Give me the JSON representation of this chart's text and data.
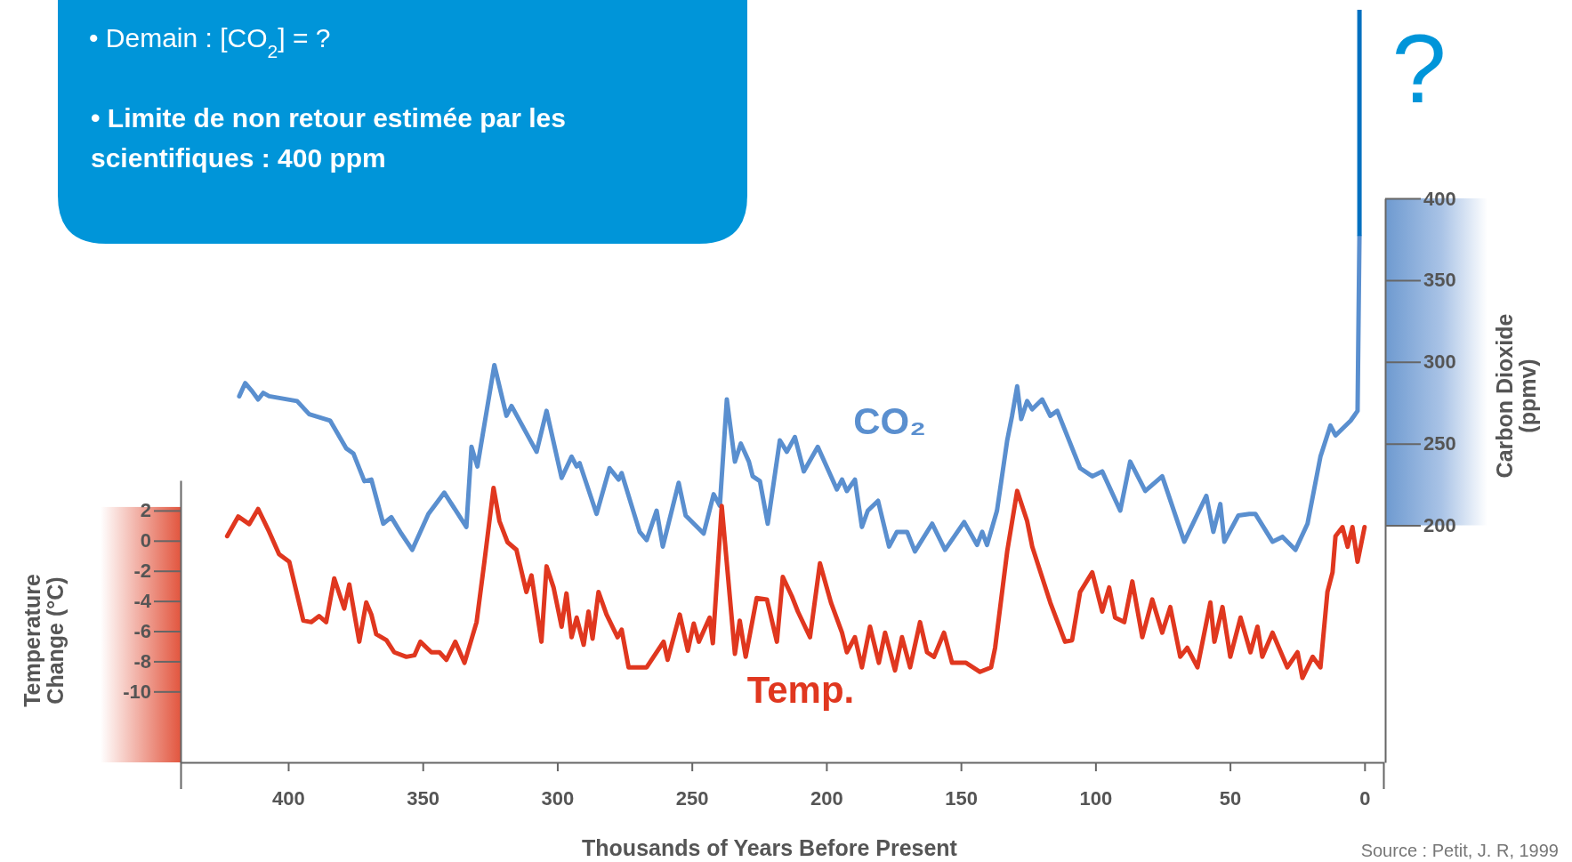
{
  "chart_data": {
    "type": "line",
    "xlabel": "Thousands of Years Before Present",
    "ylabel": "Temperature Change (°C)",
    "y2label": "Carbon Dioxide (ppmv)",
    "annotations": [
      "• Demain : [CO$_{2}$] = ?",
      "• Limite de non retour estimée par les scientifiques : 400 ppm",
      "?",
      "Source : Petit, J. R, 1999"
    ],
    "xlim": [
      440,
      -7
    ],
    "xticks": [
      400,
      350,
      300,
      250,
      200,
      150,
      100,
      50,
      0
    ],
    "ylim": [
      -14.7,
      4
    ],
    "yticks": [
      2,
      0,
      -2,
      -4,
      -6,
      -8,
      -10
    ],
    "y2lim": [
      55,
      400
    ],
    "y2ticks": [
      200,
      250,
      300,
      350,
      400
    ],
    "series": [
      {
        "name": "CO₂",
        "color": "#5a8fcf",
        "axis": "y2",
        "x": [
          418.2,
          416,
          413.4,
          411.2,
          409.3,
          407.1,
          396.7,
          392.2,
          384.4,
          378.4,
          375.8,
          371.7,
          369.1,
          364.7,
          361.7,
          358,
          353.9,
          347.9,
          342,
          333.8,
          331.9,
          329.7,
          323.4,
          318.9,
          317,
          307.7,
          304,
          298.4,
          294.7,
          292.8,
          291.7,
          285.4,
          280.6,
          277.2,
          276.1,
          269.4,
          266.8,
          263.1,
          260.8,
          254.9,
          252.3,
          245.6,
          241.9,
          239.6,
          237,
          234,
          231.8,
          228.8,
          227.4,
          224.7,
          221.8,
          217.3,
          214.7,
          211.7,
          208.4,
          203.2,
          196.1,
          194.2,
          192.4,
          189.4,
          186.8,
          184.6,
          180.8,
          176.7,
          173.8,
          170,
          167.1,
          160.7,
          155.9,
          148.8,
          144,
          142.1,
          140.3,
          136.6,
          132.8,
          131,
          129.1,
          127.6,
          125.4,
          123.5,
          119.8,
          116.8,
          114.2,
          105.7,
          101.2,
          97.5,
          90.8,
          87.1,
          81.5,
          75.2,
          67,
          58.8,
          56.2,
          53.6,
          52.1,
          46.9,
          42.8,
          40.6,
          34.2,
          30.5,
          25.7,
          21.2,
          16.4,
          12.7,
          10.8,
          5.2,
          2.6,
          1.9
        ],
        "values": [
          279,
          287,
          282,
          277,
          281,
          279,
          276,
          268,
          264,
          247,
          244,
          227,
          228,
          201,
          205,
          195,
          185,
          207,
          220,
          199,
          248,
          236,
          298,
          267,
          273,
          245,
          270,
          229,
          242,
          236,
          238,
          207,
          235,
          228,
          232,
          196,
          191,
          209,
          187,
          226,
          206,
          195,
          219,
          212,
          277,
          239,
          250,
          239,
          230,
          227,
          201,
          252,
          245,
          254,
          233,
          248,
          222,
          228,
          221,
          228,
          199,
          209,
          215,
          187,
          196,
          196,
          184,
          201,
          185,
          202,
          188,
          196,
          188,
          209,
          252,
          267,
          285,
          265,
          276,
          271,
          277,
          267,
          270,
          235,
          230,
          233,
          209,
          239,
          221,
          230,
          190,
          218,
          196,
          213,
          190,
          206,
          207,
          207,
          190,
          193,
          185,
          201,
          242,
          261,
          255,
          264,
          270,
          377
        ]
      },
      {
        "name": "Temp.",
        "color": "#e0371f",
        "x": [
          422.7,
          418.6,
          414.5,
          411.2,
          407.1,
          403.4,
          399.6,
          394.4,
          391.4,
          388.5,
          385.9,
          382.9,
          379.2,
          377.3,
          373.6,
          371,
          369.1,
          367.3,
          363.5,
          360.6,
          356.1,
          353.1,
          350.9,
          346.8,
          343.8,
          341.2,
          337.9,
          334.5,
          330,
          327.1,
          323.7,
          321.5,
          318.5,
          315.2,
          311.5,
          309.6,
          305.9,
          304,
          301.4,
          298.4,
          296.6,
          294.7,
          292.8,
          290.2,
          288.4,
          286.9,
          284.7,
          281.7,
          277.6,
          276.1,
          273.5,
          266.8,
          260.5,
          259,
          254.5,
          251.5,
          249.3,
          247.4,
          243.4,
          242.2,
          238.9,
          234,
          232.2,
          230,
          225.9,
          222.1,
          218.4,
          216.2,
          212.8,
          210.6,
          206.1,
          202.4,
          198.3,
          194.2,
          192.4,
          189.4,
          186.8,
          183.8,
          180.5,
          178.2,
          174.5,
          171.9,
          168.9,
          165.2,
          162.6,
          160,
          156.3,
          153.3,
          148.1,
          142.9,
          138.8,
          137.3,
          132.8,
          129.1,
          125.4,
          123.5,
          116.8,
          111.3,
          108.7,
          105.7,
          101.2,
          97.5,
          94.9,
          92.7,
          89.3,
          86.3,
          82.6,
          78.9,
          75.2,
          72.2,
          68.5,
          65.9,
          62.1,
          57.3,
          55.8,
          52.8,
          49.9,
          46.1,
          42.4,
          39.8,
          38,
          34.2,
          28.7,
          24.9,
          23.1,
          19.3,
          16.4,
          13.8,
          11.9,
          10.8,
          8.2,
          6.3,
          4.5,
          2.6,
          0
        ],
        "values": [
          0.3,
          1.6,
          1.1,
          2.1,
          0.6,
          -0.9,
          -1.4,
          -5.3,
          -5.4,
          -5,
          -5.4,
          -2.5,
          -4.5,
          -2.9,
          -6.7,
          -4.1,
          -4.9,
          -6.2,
          -6.6,
          -7.4,
          -7.7,
          -7.6,
          -6.7,
          -7.4,
          -7.4,
          -7.9,
          -6.7,
          -8.1,
          -5.4,
          -1.4,
          3.5,
          1.3,
          -0.1,
          -0.6,
          -3.4,
          -2.3,
          -6.7,
          -1.7,
          -3.1,
          -5.7,
          -3.5,
          -6.4,
          -5.1,
          -6.9,
          -4.7,
          -6.5,
          -3.4,
          -4.9,
          -6.4,
          -5.9,
          -8.4,
          -8.4,
          -6.7,
          -7.9,
          -4.9,
          -7.3,
          -5.5,
          -6.7,
          -5.1,
          -6.8,
          2.3,
          -7.5,
          -5.3,
          -7.7,
          -3.8,
          -3.9,
          -6.7,
          -2.4,
          -3.7,
          -4.7,
          -6.4,
          -1.5,
          -4.1,
          -6.1,
          -7.4,
          -6.4,
          -8.4,
          -5.7,
          -8.1,
          -6.1,
          -8.6,
          -6.4,
          -8.4,
          -5.4,
          -7.4,
          -7.7,
          -6.1,
          -8.1,
          -8.1,
          -8.7,
          -8.4,
          -7.1,
          -0.7,
          3.3,
          1.3,
          -0.4,
          -4.1,
          -6.7,
          -6.6,
          -3.4,
          -2.1,
          -4.7,
          -3.1,
          -5.1,
          -5.4,
          -2.7,
          -6.4,
          -3.9,
          -6.1,
          -4.4,
          -7.7,
          -7.1,
          -8.4,
          -4.1,
          -6.7,
          -4.4,
          -7.7,
          -5.1,
          -7.4,
          -5.7,
          -7.7,
          -6.1,
          -8.4,
          -7.4,
          -9.1,
          -7.7,
          -8.4,
          -3.4,
          -2.1,
          0.3,
          0.9,
          -0.4,
          0.9,
          -1.4,
          0.9
        ]
      }
    ]
  }
}
